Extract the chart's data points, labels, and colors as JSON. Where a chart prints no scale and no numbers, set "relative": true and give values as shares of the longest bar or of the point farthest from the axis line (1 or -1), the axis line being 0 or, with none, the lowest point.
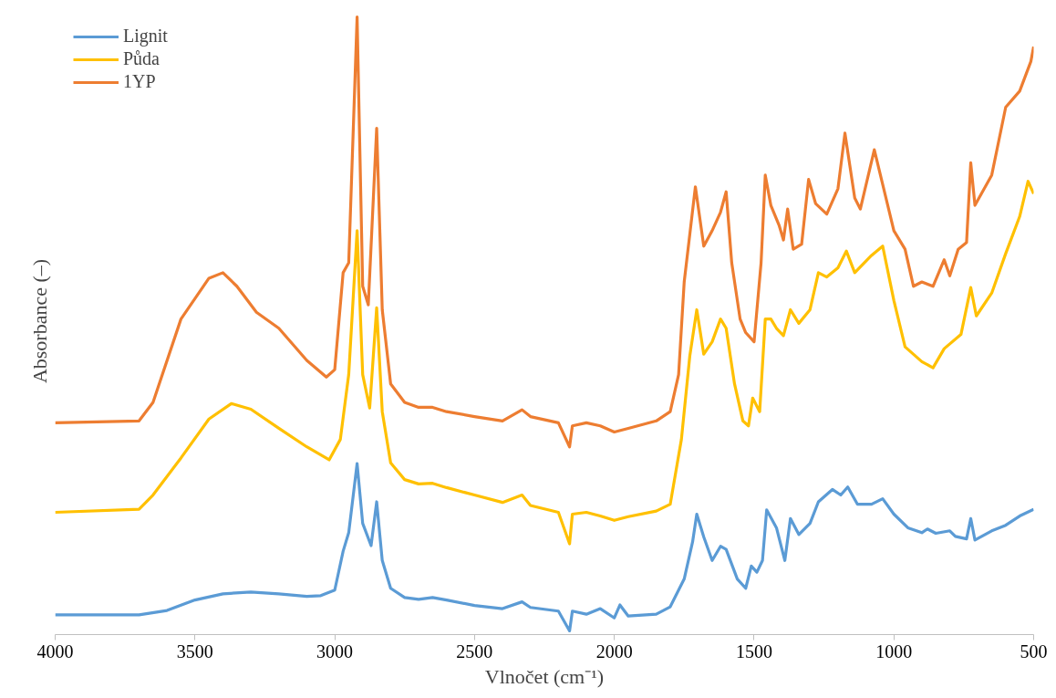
{
  "chart_data": {
    "type": "line",
    "xlabel": "Vlnočet (cm⁻¹)",
    "ylabel": "Absorbance (–)",
    "relative": true,
    "xlim": [
      4000,
      500
    ],
    "xticks": [
      4000,
      3500,
      3000,
      2500,
      2000,
      1500,
      1000,
      500
    ],
    "grid": false,
    "legend": "top left",
    "line_style": "solid",
    "marker": "none",
    "series": [
      {
        "name": "Lignit",
        "color": "#5b9bd5",
        "x": [
          4000,
          3700,
          3600,
          3500,
          3400,
          3300,
          3200,
          3100,
          3050,
          3000,
          2970,
          2950,
          2920,
          2900,
          2870,
          2850,
          2830,
          2800,
          2750,
          2700,
          2650,
          2600,
          2500,
          2400,
          2330,
          2300,
          2200,
          2160,
          2150,
          2100,
          2050,
          2000,
          1980,
          1950,
          1850,
          1800,
          1750,
          1720,
          1705,
          1680,
          1650,
          1620,
          1600,
          1560,
          1530,
          1510,
          1490,
          1470,
          1455,
          1420,
          1390,
          1370,
          1340,
          1300,
          1270,
          1220,
          1190,
          1165,
          1130,
          1080,
          1040,
          1000,
          950,
          900,
          880,
          850,
          800,
          780,
          740,
          725,
          710,
          650,
          600,
          550,
          500
        ],
        "values": [
          0.032,
          0.032,
          0.039,
          0.056,
          0.066,
          0.069,
          0.066,
          0.062,
          0.063,
          0.072,
          0.135,
          0.165,
          0.277,
          0.18,
          0.144,
          0.215,
          0.12,
          0.075,
          0.06,
          0.057,
          0.06,
          0.056,
          0.047,
          0.042,
          0.053,
          0.044,
          0.038,
          0.006,
          0.038,
          0.033,
          0.042,
          0.027,
          0.048,
          0.03,
          0.033,
          0.045,
          0.09,
          0.15,
          0.195,
          0.158,
          0.12,
          0.143,
          0.138,
          0.09,
          0.075,
          0.111,
          0.101,
          0.12,
          0.202,
          0.173,
          0.12,
          0.188,
          0.162,
          0.18,
          0.215,
          0.235,
          0.226,
          0.239,
          0.211,
          0.211,
          0.22,
          0.195,
          0.173,
          0.165,
          0.171,
          0.164,
          0.168,
          0.159,
          0.155,
          0.188,
          0.153,
          0.168,
          0.177,
          0.192,
          0.203
        ]
      },
      {
        "name": "Půda",
        "color": "#ffc000",
        "x": [
          4000,
          3700,
          3650,
          3550,
          3450,
          3370,
          3300,
          3200,
          3100,
          3020,
          2980,
          2950,
          2920,
          2900,
          2875,
          2850,
          2830,
          2800,
          2750,
          2700,
          2650,
          2600,
          2500,
          2400,
          2330,
          2300,
          2200,
          2160,
          2150,
          2100,
          2050,
          2000,
          1950,
          1850,
          1800,
          1760,
          1730,
          1705,
          1680,
          1650,
          1620,
          1600,
          1570,
          1540,
          1520,
          1505,
          1480,
          1460,
          1440,
          1420,
          1395,
          1370,
          1340,
          1300,
          1270,
          1240,
          1200,
          1170,
          1140,
          1080,
          1040,
          1000,
          960,
          900,
          860,
          820,
          760,
          725,
          705,
          650,
          600,
          550,
          520,
          500
        ],
        "values": [
          0.198,
          0.203,
          0.226,
          0.286,
          0.349,
          0.374,
          0.365,
          0.334,
          0.304,
          0.283,
          0.316,
          0.421,
          0.654,
          0.421,
          0.367,
          0.529,
          0.361,
          0.278,
          0.251,
          0.244,
          0.245,
          0.238,
          0.226,
          0.214,
          0.226,
          0.209,
          0.198,
          0.147,
          0.195,
          0.198,
          0.192,
          0.185,
          0.191,
          0.2,
          0.211,
          0.316,
          0.451,
          0.526,
          0.454,
          0.474,
          0.511,
          0.496,
          0.406,
          0.346,
          0.338,
          0.383,
          0.361,
          0.511,
          0.511,
          0.496,
          0.484,
          0.526,
          0.504,
          0.526,
          0.586,
          0.579,
          0.594,
          0.621,
          0.586,
          0.614,
          0.629,
          0.541,
          0.466,
          0.442,
          0.432,
          0.463,
          0.486,
          0.562,
          0.516,
          0.553,
          0.617,
          0.677,
          0.734,
          0.714
        ]
      },
      {
        "name": "1YP",
        "color": "#ed7d31",
        "x": [
          4000,
          3700,
          3650,
          3550,
          3450,
          3400,
          3350,
          3280,
          3200,
          3100,
          3030,
          3000,
          2970,
          2950,
          2920,
          2900,
          2880,
          2850,
          2830,
          2800,
          2750,
          2700,
          2650,
          2600,
          2500,
          2400,
          2330,
          2300,
          2200,
          2160,
          2150,
          2100,
          2050,
          2000,
          1950,
          1850,
          1800,
          1770,
          1750,
          1710,
          1680,
          1650,
          1620,
          1600,
          1580,
          1550,
          1530,
          1500,
          1475,
          1460,
          1440,
          1410,
          1395,
          1380,
          1360,
          1330,
          1305,
          1280,
          1240,
          1200,
          1175,
          1140,
          1120,
          1070,
          1040,
          1000,
          960,
          930,
          900,
          860,
          820,
          800,
          770,
          740,
          725,
          710,
          650,
          600,
          550,
          510,
          500
        ],
        "values": [
          0.343,
          0.346,
          0.376,
          0.511,
          0.577,
          0.586,
          0.564,
          0.522,
          0.496,
          0.444,
          0.417,
          0.429,
          0.586,
          0.602,
          1.0,
          0.564,
          0.534,
          0.82,
          0.526,
          0.406,
          0.376,
          0.368,
          0.368,
          0.361,
          0.353,
          0.346,
          0.364,
          0.353,
          0.343,
          0.304,
          0.338,
          0.343,
          0.338,
          0.328,
          0.334,
          0.346,
          0.361,
          0.421,
          0.571,
          0.725,
          0.629,
          0.654,
          0.684,
          0.717,
          0.602,
          0.511,
          0.489,
          0.474,
          0.602,
          0.744,
          0.695,
          0.662,
          0.639,
          0.689,
          0.624,
          0.632,
          0.737,
          0.698,
          0.681,
          0.722,
          0.812,
          0.707,
          0.689,
          0.785,
          0.729,
          0.654,
          0.624,
          0.564,
          0.571,
          0.564,
          0.607,
          0.581,
          0.624,
          0.635,
          0.764,
          0.695,
          0.744,
          0.854,
          0.88,
          0.928,
          0.952
        ]
      }
    ]
  }
}
